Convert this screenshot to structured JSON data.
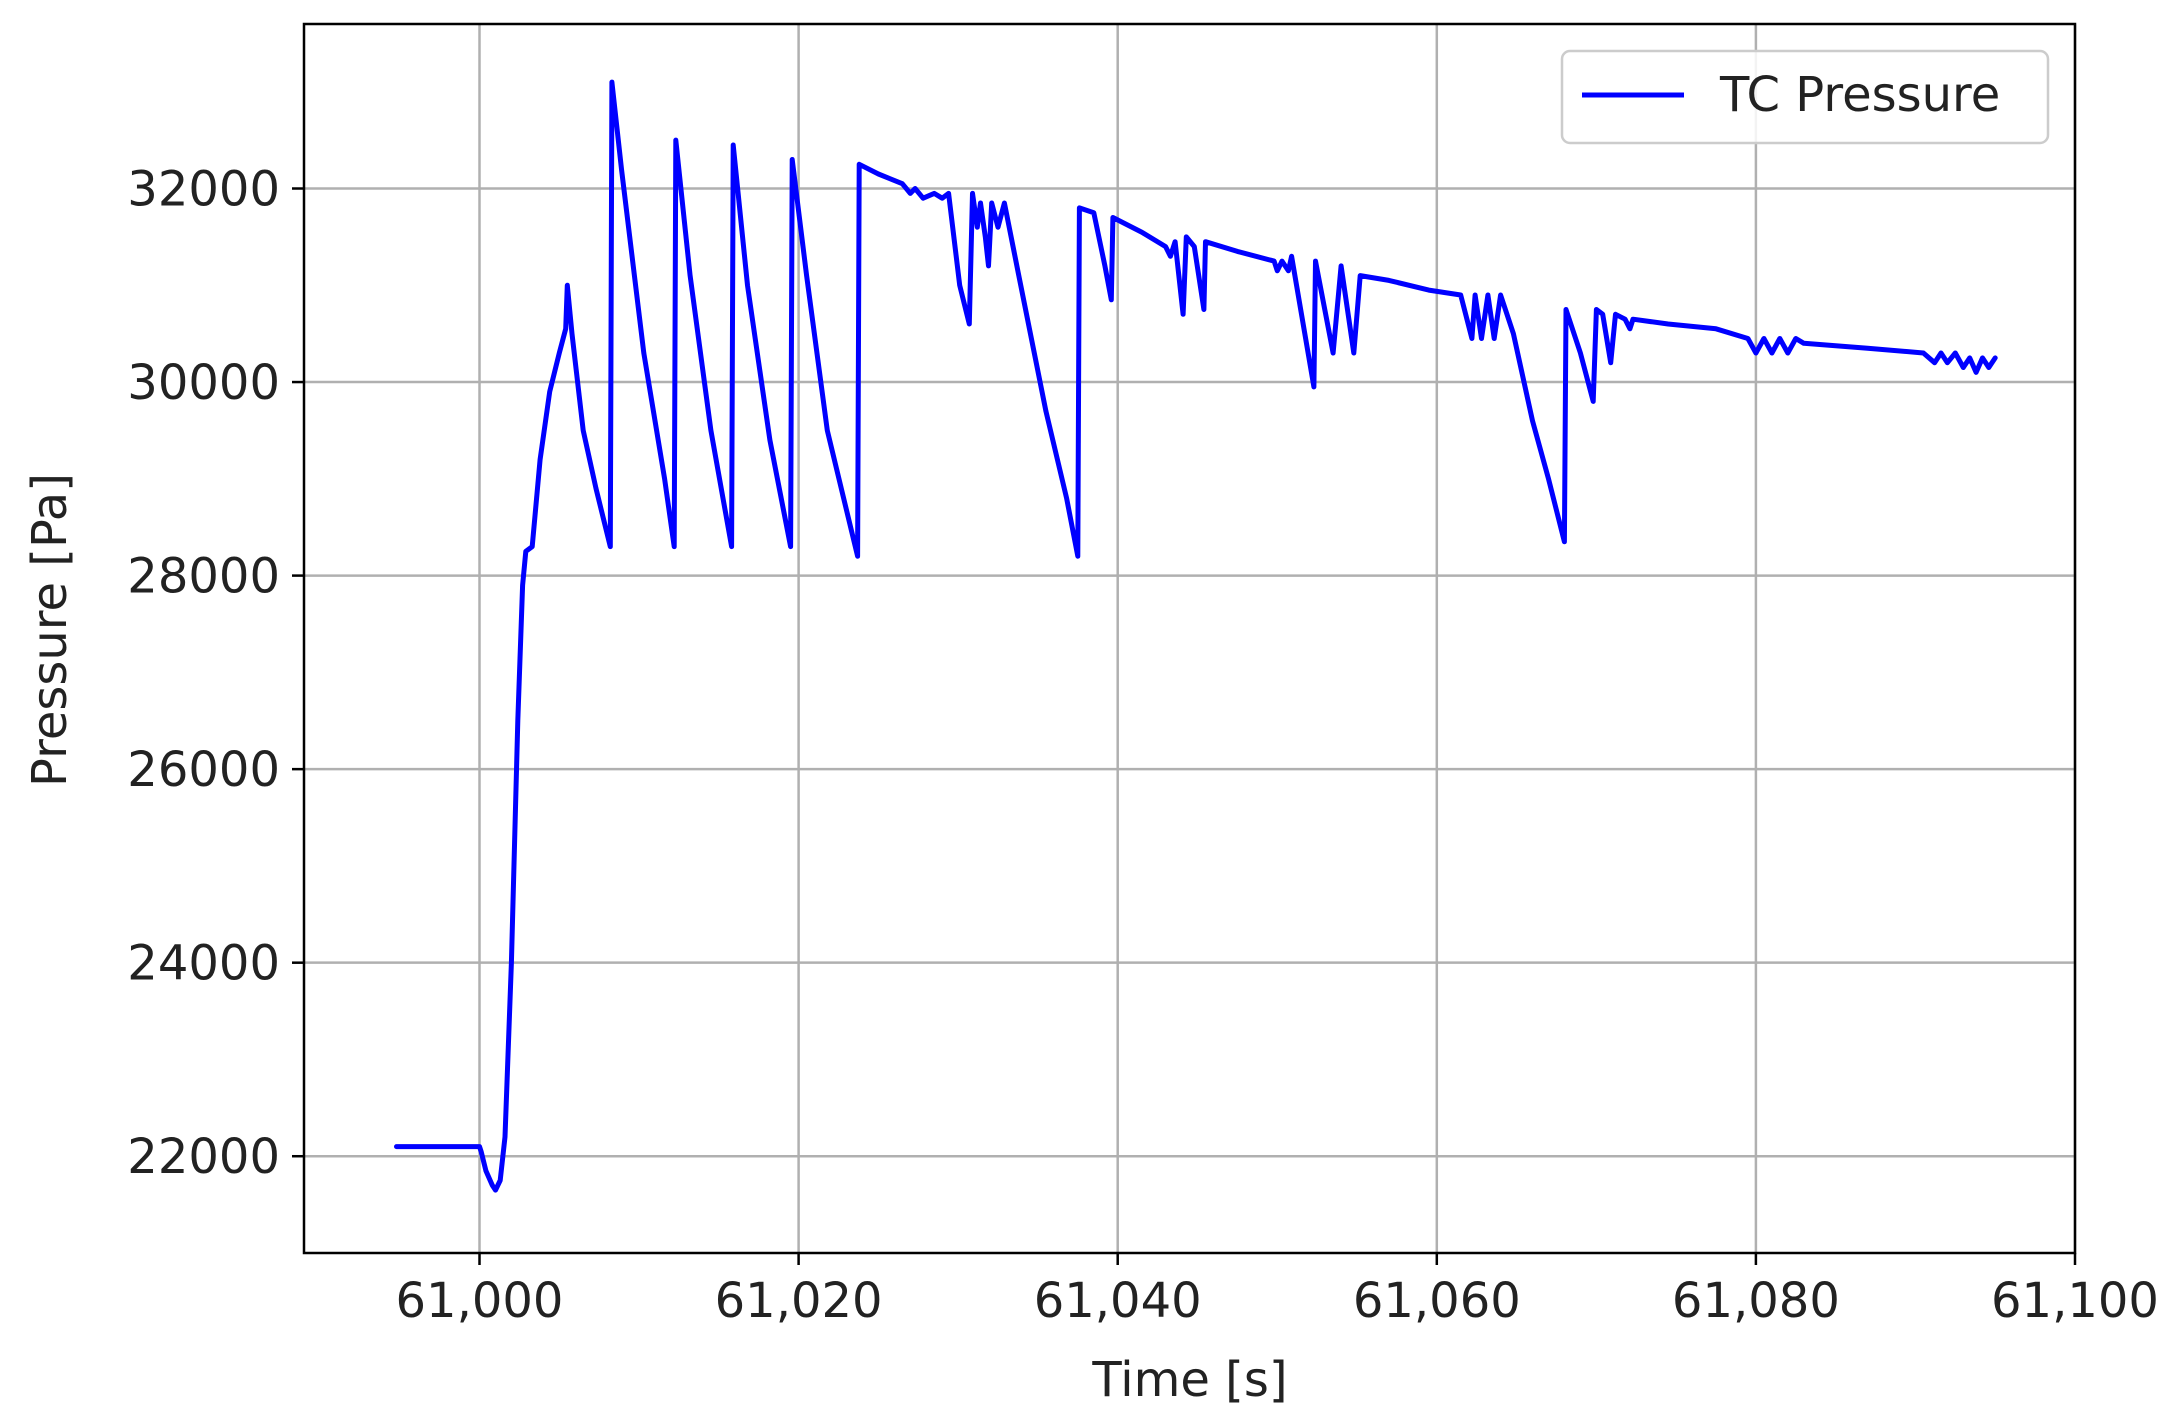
{
  "chart_data": {
    "type": "line",
    "xlabel": "Time [s]",
    "ylabel": "Pressure [Pa]",
    "xlim": [
      60989,
      61100
    ],
    "ylim": [
      21000,
      33700
    ],
    "x_ticks": [
      61000,
      61020,
      61040,
      61060,
      61080,
      61100
    ],
    "x_tick_labels": [
      "61,000",
      "61,020",
      "61,040",
      "61,060",
      "61,080",
      "61,100"
    ],
    "y_ticks": [
      22000,
      24000,
      26000,
      28000,
      30000,
      32000
    ],
    "y_tick_labels": [
      "22000",
      "24000",
      "26000",
      "28000",
      "30000",
      "32000"
    ],
    "grid": true,
    "legend_position": "top-right",
    "color": "#0000ff",
    "series": [
      {
        "name": "TC Pressure",
        "color": "#0000ff",
        "points": [
          [
            60994.8,
            22100
          ],
          [
            61000.0,
            22100
          ],
          [
            61000.1,
            22050
          ],
          [
            61000.4,
            21850
          ],
          [
            61000.8,
            21700
          ],
          [
            61001.0,
            21650
          ],
          [
            61001.3,
            21750
          ],
          [
            61001.6,
            22200
          ],
          [
            61002.0,
            24000
          ],
          [
            61002.4,
            26500
          ],
          [
            61002.7,
            27900
          ],
          [
            61002.9,
            28250
          ],
          [
            61003.3,
            28300
          ],
          [
            61003.8,
            29200
          ],
          [
            61004.4,
            29900
          ],
          [
            61005.0,
            30300
          ],
          [
            61005.4,
            30550
          ],
          [
            61005.5,
            31000
          ],
          [
            61005.8,
            30500
          ],
          [
            61006.5,
            29500
          ],
          [
            61007.3,
            28900
          ],
          [
            61008.2,
            28300
          ],
          [
            61008.3,
            33100
          ],
          [
            61008.9,
            32200
          ],
          [
            61010.3,
            30300
          ],
          [
            61011.6,
            29000
          ],
          [
            61012.2,
            28300
          ],
          [
            61012.3,
            32500
          ],
          [
            61013.2,
            31100
          ],
          [
            61014.5,
            29500
          ],
          [
            61015.8,
            28300
          ],
          [
            61015.9,
            32450
          ],
          [
            61016.8,
            31000
          ],
          [
            61018.2,
            29400
          ],
          [
            61019.5,
            28300
          ],
          [
            61019.6,
            32300
          ],
          [
            61020.5,
            31100
          ],
          [
            61021.8,
            29500
          ],
          [
            61023.7,
            28200
          ],
          [
            61023.8,
            32250
          ],
          [
            61025.0,
            32150
          ],
          [
            61026.5,
            32050
          ],
          [
            61027.0,
            31950
          ],
          [
            61027.3,
            32000
          ],
          [
            61027.8,
            31900
          ],
          [
            61028.5,
            31950
          ],
          [
            61029.0,
            31900
          ],
          [
            61029.4,
            31950
          ],
          [
            61030.1,
            31000
          ],
          [
            61030.7,
            30600
          ],
          [
            61030.9,
            31950
          ],
          [
            61031.2,
            31600
          ],
          [
            61031.4,
            31850
          ],
          [
            61031.7,
            31500
          ],
          [
            61031.9,
            31200
          ],
          [
            61032.1,
            31850
          ],
          [
            61032.5,
            31600
          ],
          [
            61032.9,
            31850
          ],
          [
            61033.8,
            31100
          ],
          [
            61035.5,
            29700
          ],
          [
            61036.8,
            28800
          ],
          [
            61037.5,
            28200
          ],
          [
            61037.6,
            31800
          ],
          [
            61038.5,
            31750
          ],
          [
            61039.2,
            31200
          ],
          [
            61039.6,
            30850
          ],
          [
            61039.7,
            31700
          ],
          [
            61041.5,
            31550
          ],
          [
            61043.0,
            31400
          ],
          [
            61043.3,
            31300
          ],
          [
            61043.6,
            31450
          ],
          [
            61044.1,
            30700
          ],
          [
            61044.3,
            31500
          ],
          [
            61044.8,
            31400
          ],
          [
            61045.4,
            30750
          ],
          [
            61045.5,
            31450
          ],
          [
            61047.5,
            31350
          ],
          [
            61049.8,
            31250
          ],
          [
            61050.0,
            31150
          ],
          [
            61050.3,
            31250
          ],
          [
            61050.7,
            31150
          ],
          [
            61050.9,
            31300
          ],
          [
            61052.3,
            29950
          ],
          [
            61052.4,
            31250
          ],
          [
            61053.5,
            30300
          ],
          [
            61054.0,
            31200
          ],
          [
            61054.8,
            30300
          ],
          [
            61055.2,
            31100
          ],
          [
            61057.0,
            31050
          ],
          [
            61059.5,
            30950
          ],
          [
            61061.5,
            30900
          ],
          [
            61062.2,
            30450
          ],
          [
            61062.4,
            30900
          ],
          [
            61062.8,
            30450
          ],
          [
            61063.2,
            30900
          ],
          [
            61063.6,
            30450
          ],
          [
            61064.0,
            30900
          ],
          [
            61064.8,
            30500
          ],
          [
            61066.0,
            29600
          ],
          [
            61067.0,
            29000
          ],
          [
            61068.0,
            28350
          ],
          [
            61068.1,
            30750
          ],
          [
            61069.0,
            30300
          ],
          [
            61069.8,
            29800
          ],
          [
            61070.0,
            30750
          ],
          [
            61070.4,
            30700
          ],
          [
            61070.9,
            30200
          ],
          [
            61071.2,
            30700
          ],
          [
            61071.8,
            30650
          ],
          [
            61072.1,
            30550
          ],
          [
            61072.3,
            30650
          ],
          [
            61074.5,
            30600
          ],
          [
            61077.5,
            30550
          ],
          [
            61079.5,
            30450
          ],
          [
            61080.0,
            30300
          ],
          [
            61080.5,
            30450
          ],
          [
            61081.0,
            30300
          ],
          [
            61081.5,
            30450
          ],
          [
            61082.0,
            30300
          ],
          [
            61082.5,
            30450
          ],
          [
            61083.0,
            30400
          ],
          [
            61087.0,
            30350
          ],
          [
            61090.5,
            30300
          ],
          [
            61091.2,
            30200
          ],
          [
            61091.6,
            30300
          ],
          [
            61092.0,
            30200
          ],
          [
            61092.5,
            30300
          ],
          [
            61093.0,
            30150
          ],
          [
            61093.4,
            30250
          ],
          [
            61093.8,
            30100
          ],
          [
            61094.2,
            30250
          ],
          [
            61094.6,
            30150
          ],
          [
            61095.0,
            30250
          ]
        ]
      }
    ]
  }
}
